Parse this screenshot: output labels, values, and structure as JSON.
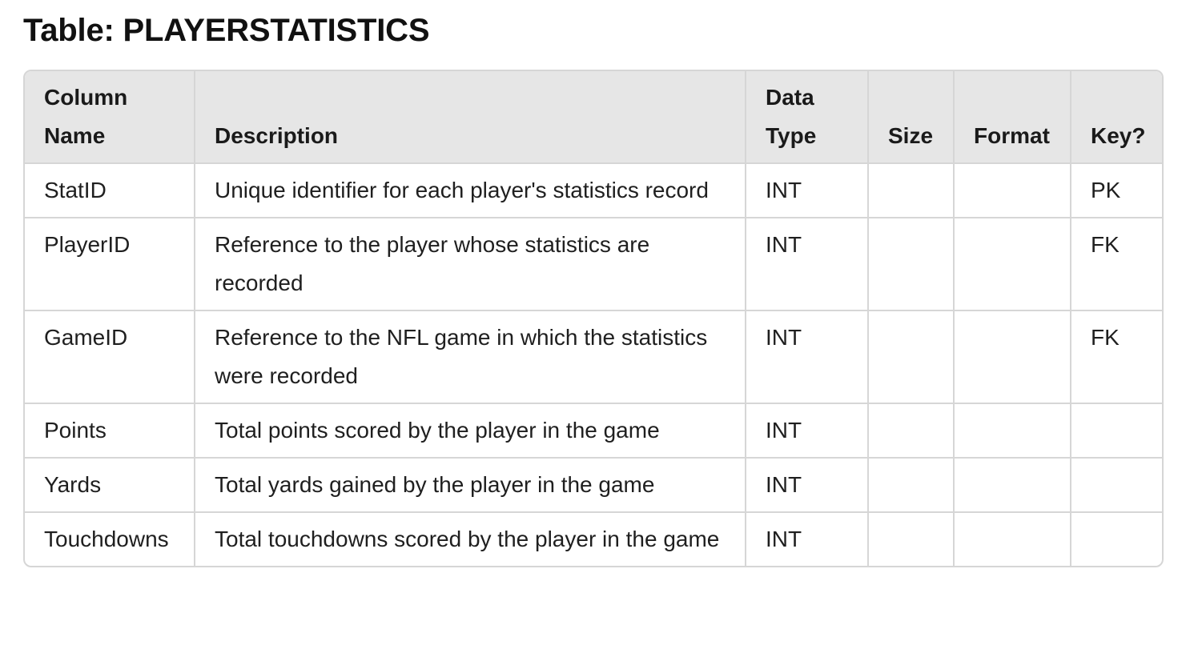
{
  "page": {
    "title": "Table: PLAYERSTATISTICS"
  },
  "table": {
    "headers": [
      {
        "label": "Column Name"
      },
      {
        "label": "Description"
      },
      {
        "label": "Data Type"
      },
      {
        "label": "Size"
      },
      {
        "label": "Format"
      },
      {
        "label": "Key?"
      }
    ],
    "rows": [
      {
        "column_name": "StatID",
        "description": "Unique identifier for each player's statistics record",
        "data_type": "INT",
        "size": "",
        "format": "",
        "key": "PK"
      },
      {
        "column_name": "PlayerID",
        "description": "Reference to the player whose statistics are recorded",
        "data_type": "INT",
        "size": "",
        "format": "",
        "key": "FK"
      },
      {
        "column_name": "GameID",
        "description": "Reference to the NFL game in which the statistics were recorded",
        "data_type": "INT",
        "size": "",
        "format": "",
        "key": "FK"
      },
      {
        "column_name": "Points",
        "description": "Total points scored by the player in the game",
        "data_type": "INT",
        "size": "",
        "format": "",
        "key": ""
      },
      {
        "column_name": "Yards",
        "description": "Total yards gained by the player in the game",
        "data_type": "INT",
        "size": "",
        "format": "",
        "key": ""
      },
      {
        "column_name": "Touchdowns",
        "description": "Total touchdowns scored by the player in the game",
        "data_type": "INT",
        "size": "",
        "format": "",
        "key": ""
      }
    ]
  }
}
